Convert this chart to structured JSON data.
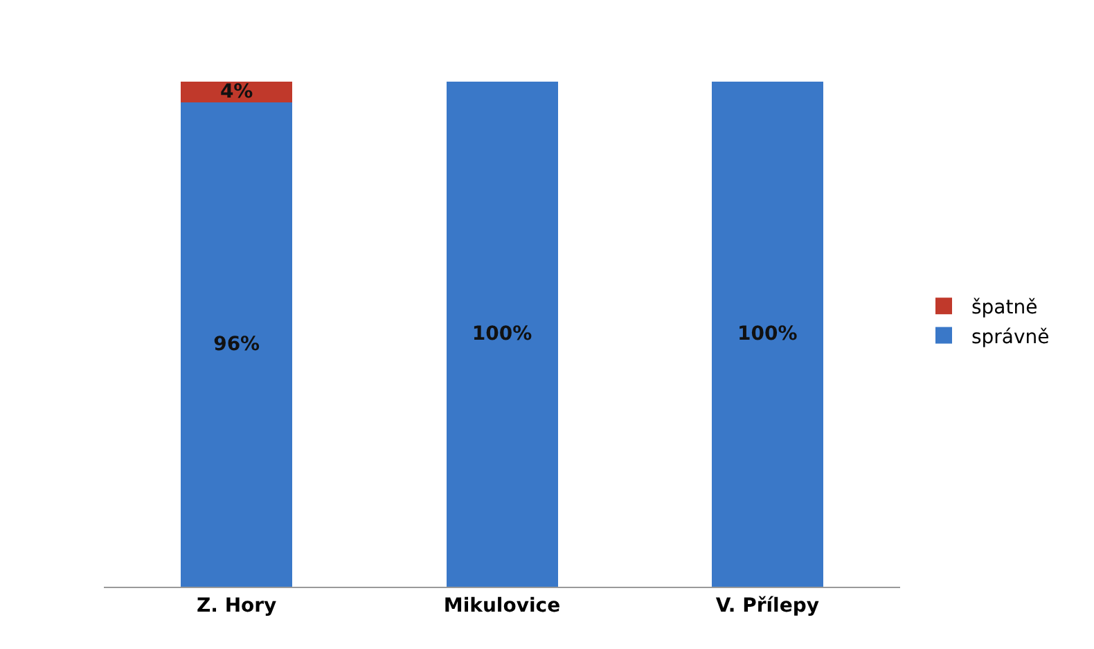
{
  "chart_data": {
    "type": "bar",
    "stacked": true,
    "categories": [
      "Z. Hory",
      "Mikulovice",
      "V. Přílepy"
    ],
    "series": [
      {
        "name": "správně",
        "color": "#3a78c8",
        "values": [
          96,
          100,
          100
        ],
        "value_labels": [
          "96%",
          "100%",
          "100%"
        ]
      },
      {
        "name": "špatně",
        "color": "#c0392b",
        "values": [
          4,
          null,
          null
        ],
        "value_labels": [
          "4%",
          null,
          null
        ]
      }
    ],
    "legend": "right",
    "grid": false,
    "tick_labels": "x"
  }
}
